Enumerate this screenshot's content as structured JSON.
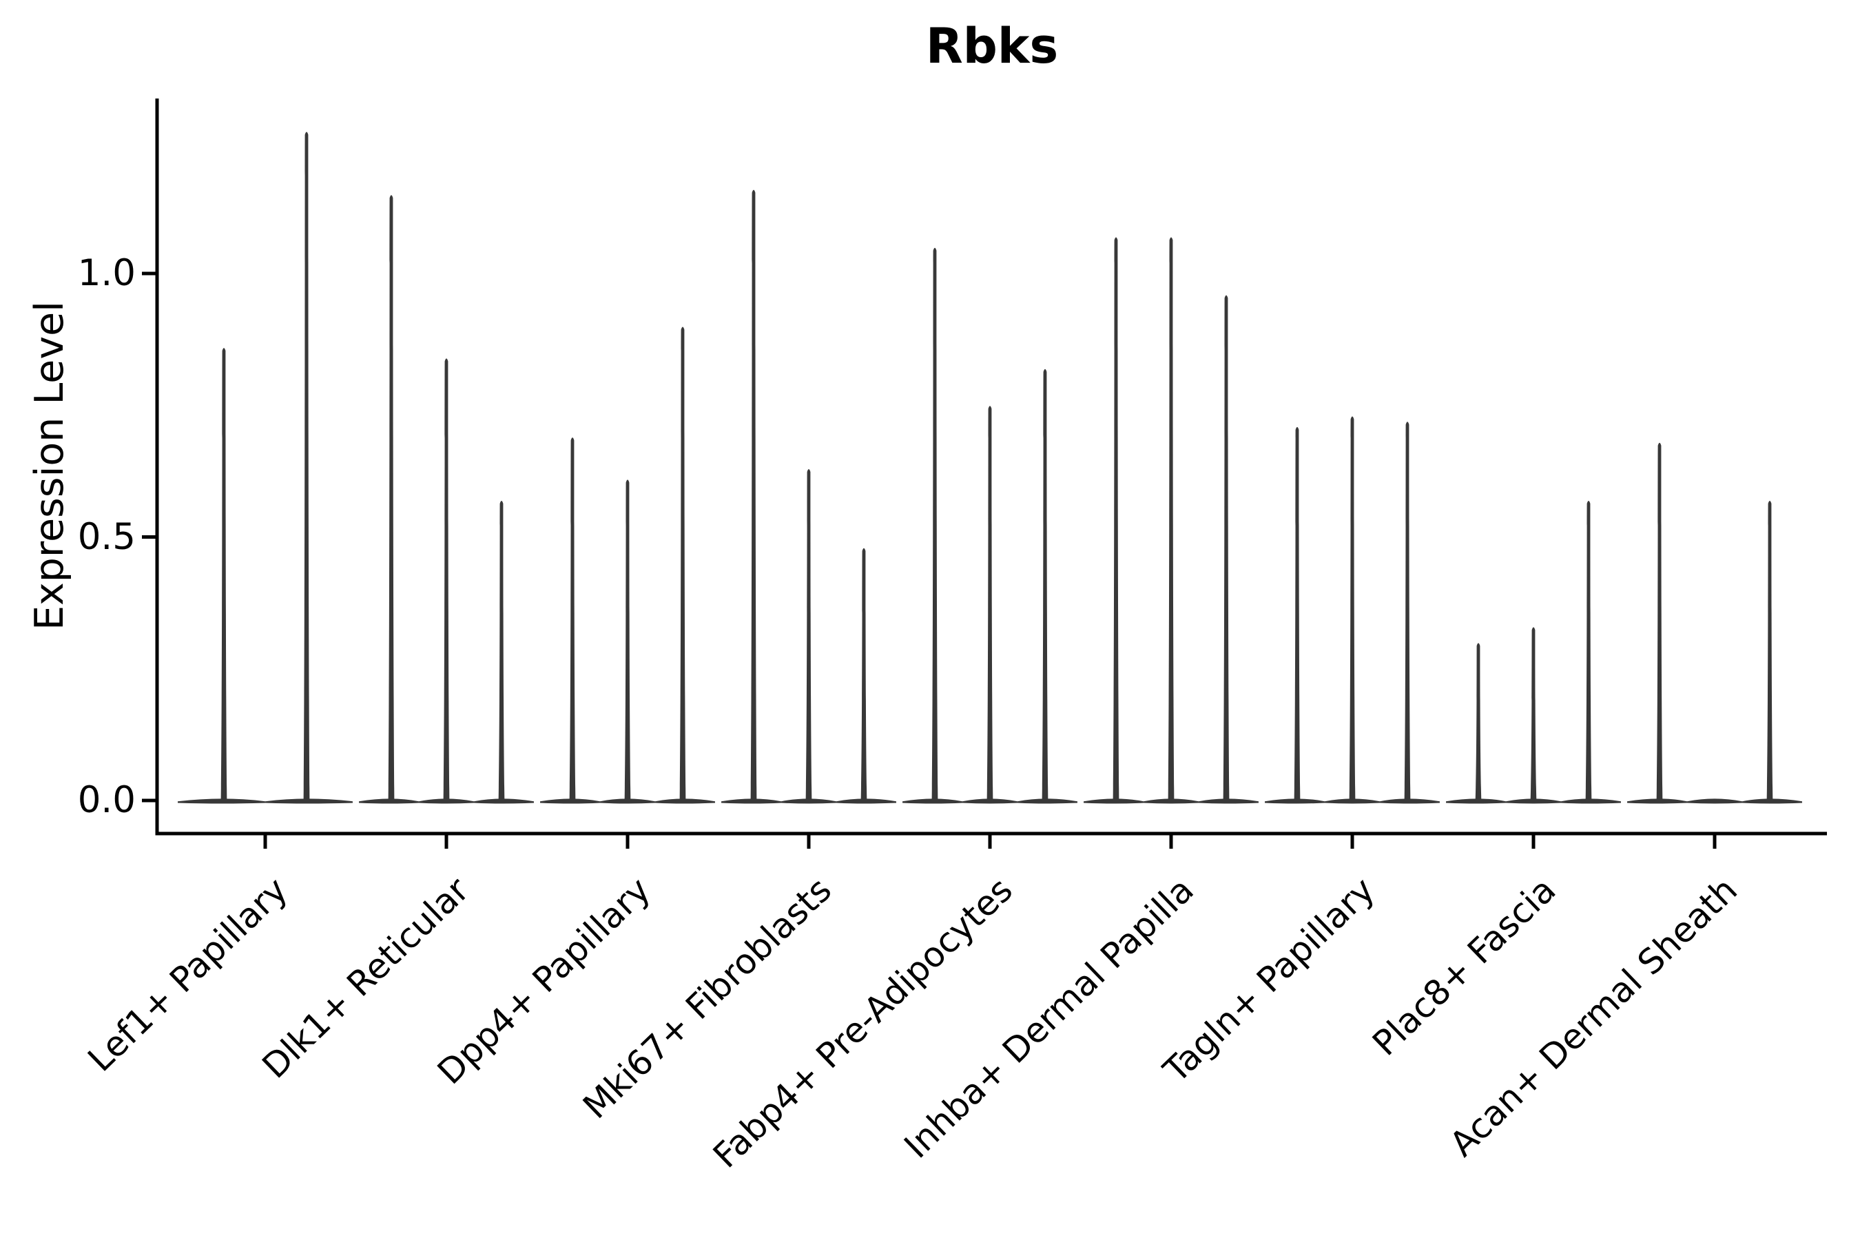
{
  "chart_data": {
    "type": "violin",
    "title": "Rbks",
    "xlabel": "",
    "ylabel": "Expression Level",
    "grid": false,
    "legend_position": "none",
    "background_color": "#ffffff",
    "violin_color": "#383838",
    "axis_color": "#000000",
    "ylim": [
      -0.068,
      1.33
    ],
    "yticks": [
      {
        "label": "0.0",
        "value": 0.0
      },
      {
        "label": "0.5",
        "value": 0.5
      },
      {
        "label": "1.0",
        "value": 1.0
      }
    ],
    "categories": [
      "Lef1+ Papillary",
      "Dlk1+ Reticular",
      "Dpp4+ Papillary",
      "Mki67+ Fibroblasts",
      "Fabp4+ Pre-Adipocytes",
      "Inhba+ Dermal Papilla",
      "Tagln+ Papillary",
      "Plac8+ Fascia",
      "Acan+ Dermal Sheath"
    ],
    "groups": [
      {
        "label": "Lef1+ Papillary",
        "violin_maxima": [
          0.86,
          1.27
        ]
      },
      {
        "label": "Dlk1+ Reticular",
        "violin_maxima": [
          1.15,
          0.84,
          0.57
        ]
      },
      {
        "label": "Dpp4+ Papillary",
        "violin_maxima": [
          0.69,
          0.61,
          0.9
        ]
      },
      {
        "label": "Mki67+ Fibroblasts",
        "violin_maxima": [
          1.16,
          0.63,
          0.48
        ]
      },
      {
        "label": "Fabp4+ Pre-Adipocytes",
        "violin_maxima": [
          1.05,
          0.75,
          0.82
        ]
      },
      {
        "label": "Inhba+ Dermal Papilla",
        "violin_maxima": [
          1.07,
          1.07,
          0.96
        ]
      },
      {
        "label": "Tagln+ Papillary",
        "violin_maxima": [
          0.71,
          0.73,
          0.72
        ]
      },
      {
        "label": "Plac8+ Fascia",
        "violin_maxima": [
          0.3,
          0.33,
          0.57
        ]
      },
      {
        "label": "Acan+ Dermal Sheath",
        "violin_maxima": [
          0.68,
          0.0,
          0.57
        ]
      }
    ],
    "note": "Each category shows thin spike-shaped violins (most values at 0, spike to max expression)."
  }
}
